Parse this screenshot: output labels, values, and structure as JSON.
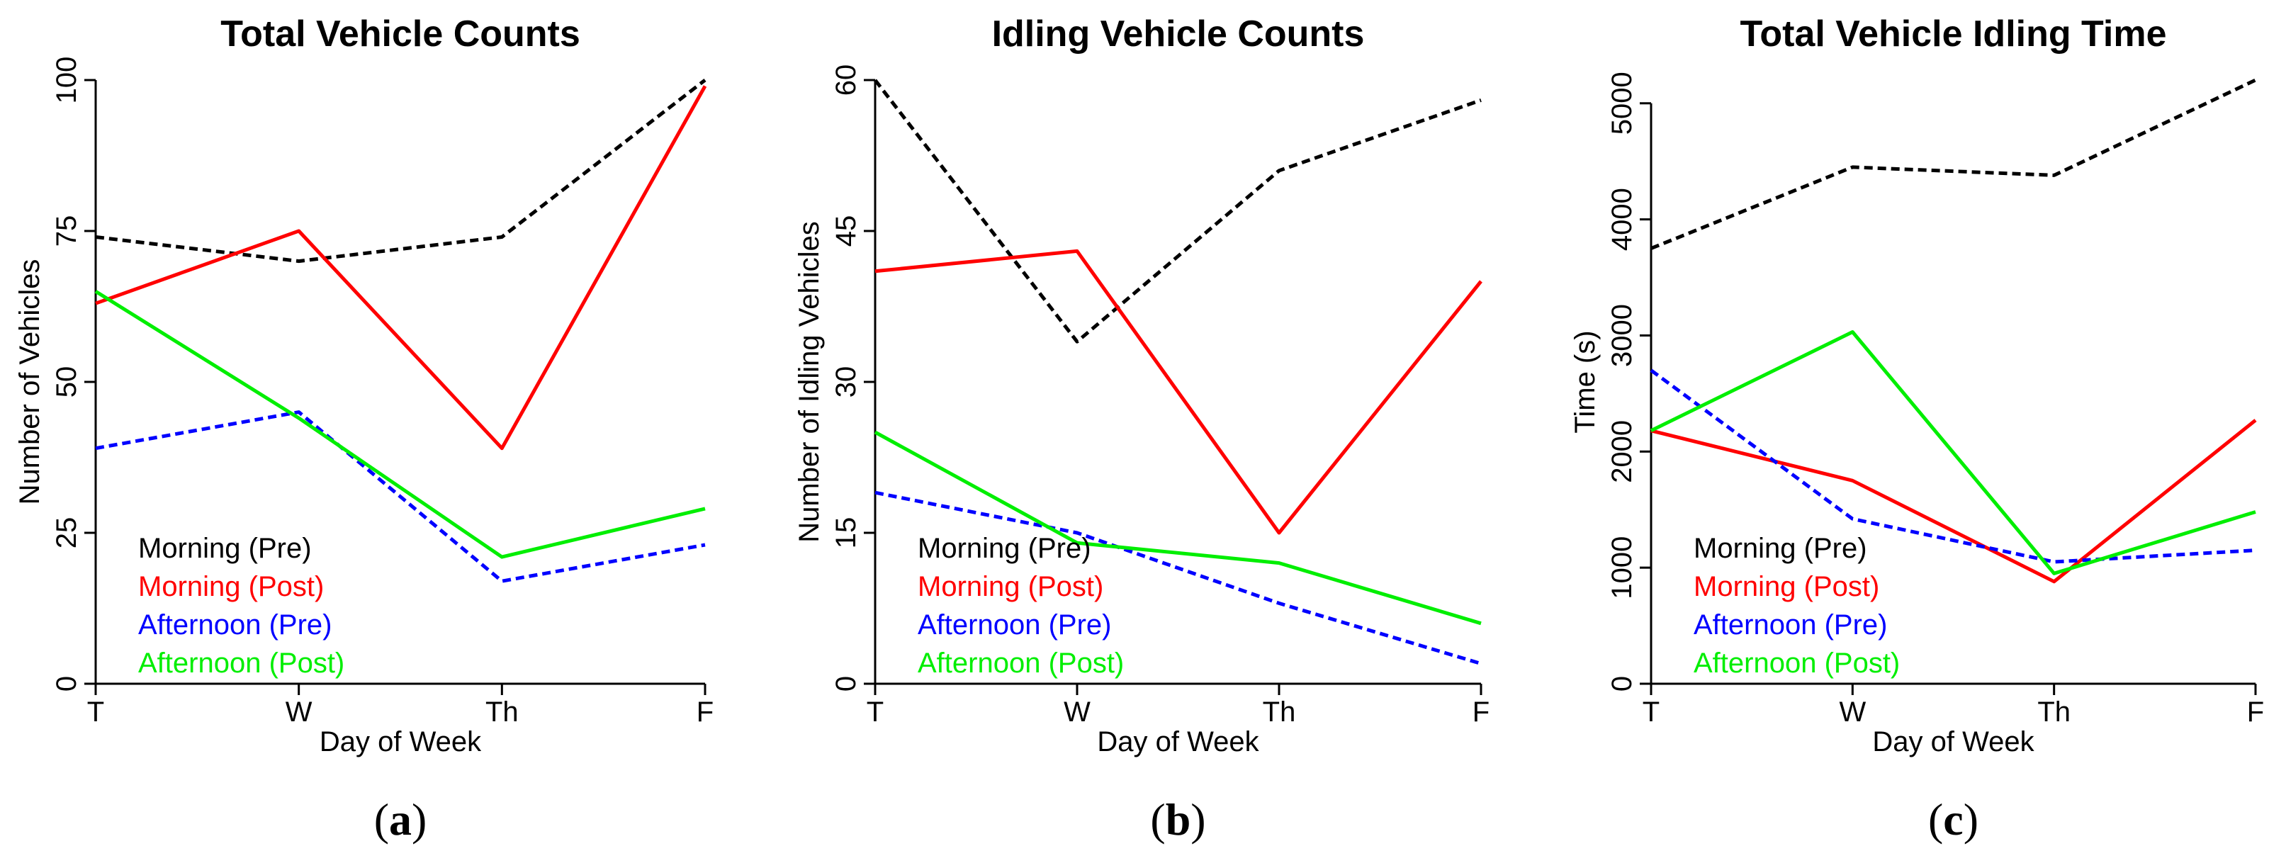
{
  "chart_data": [
    {
      "type": "line",
      "panel_label": "a",
      "title": "Total Vehicle Counts",
      "xlabel": "Day of Week",
      "ylabel": "Number of Vehicles",
      "categories": [
        "T",
        "W",
        "Th",
        "F"
      ],
      "yticks": [
        0,
        25,
        50,
        75,
        100
      ],
      "ylim": [
        0,
        100
      ],
      "legend_position": "bottom-left",
      "series": [
        {
          "name": "Morning (Pre)",
          "color": "#000000",
          "dash": "dotted",
          "values": [
            74,
            70,
            74,
            100
          ]
        },
        {
          "name": "Morning (Post)",
          "color": "#ff0000",
          "dash": "solid",
          "values": [
            63,
            75,
            39,
            99
          ]
        },
        {
          "name": "Afternoon (Pre)",
          "color": "#0000ff",
          "dash": "dotted",
          "values": [
            39,
            45,
            17,
            23
          ]
        },
        {
          "name": "Afternoon (Post)",
          "color": "#00ee00",
          "dash": "solid",
          "values": [
            65,
            44,
            21,
            29
          ]
        }
      ]
    },
    {
      "type": "line",
      "panel_label": "b",
      "title": "Idling Vehicle Counts",
      "xlabel": "Day of Week",
      "ylabel": "Number of Idling Vehicles",
      "categories": [
        "T",
        "W",
        "Th",
        "F"
      ],
      "yticks": [
        0,
        15,
        30,
        45,
        60
      ],
      "ylim": [
        0,
        60
      ],
      "legend_position": "bottom-left",
      "series": [
        {
          "name": "Morning (Pre)",
          "color": "#000000",
          "dash": "dotted",
          "values": [
            60,
            34,
            51,
            58
          ]
        },
        {
          "name": "Morning (Post)",
          "color": "#ff0000",
          "dash": "solid",
          "values": [
            41,
            43,
            15,
            40
          ]
        },
        {
          "name": "Afternoon (Pre)",
          "color": "#0000ff",
          "dash": "dotted",
          "values": [
            19,
            15,
            8,
            2
          ]
        },
        {
          "name": "Afternoon (Post)",
          "color": "#00ee00",
          "dash": "solid",
          "values": [
            25,
            14,
            12,
            6
          ]
        }
      ]
    },
    {
      "type": "line",
      "panel_label": "c",
      "title": "Total Vehicle Idling Time",
      "xlabel": "Day of Week",
      "ylabel": "Time (s)",
      "categories": [
        "T",
        "W",
        "Th",
        "F"
      ],
      "yticks": [
        0,
        1000,
        2000,
        3000,
        4000,
        5000
      ],
      "ylim": [
        0,
        5200
      ],
      "legend_position": "bottom-left",
      "series": [
        {
          "name": "Morning (Pre)",
          "color": "#000000",
          "dash": "dotted",
          "values": [
            3750,
            4450,
            4380,
            5200
          ]
        },
        {
          "name": "Morning (Post)",
          "color": "#ff0000",
          "dash": "solid",
          "values": [
            2180,
            1750,
            880,
            2270
          ]
        },
        {
          "name": "Afternoon (Pre)",
          "color": "#0000ff",
          "dash": "dotted",
          "values": [
            2700,
            1420,
            1050,
            1150
          ]
        },
        {
          "name": "Afternoon (Post)",
          "color": "#00ee00",
          "dash": "solid",
          "values": [
            2180,
            3030,
            950,
            1480
          ]
        }
      ]
    }
  ]
}
